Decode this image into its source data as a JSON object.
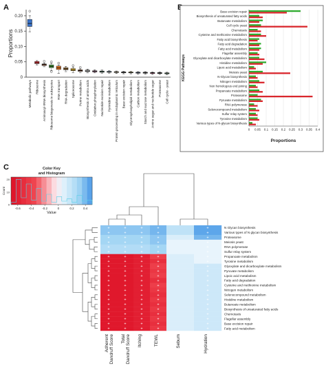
{
  "panels": {
    "a": "A",
    "b": "B",
    "c": "C"
  },
  "chart_data": [
    {
      "type": "box",
      "panel": "A",
      "ylabel": "Proportions",
      "ylim": [
        0,
        0.22
      ],
      "yticks": [
        0,
        0.05,
        0.1,
        0.15,
        0.2
      ],
      "ytick_labels": [
        "0",
        "0.05",
        "0.10",
        "0.15",
        "0.20"
      ],
      "grid": false,
      "boxes": [
        {
          "label": "Metabolic pathways",
          "color": "#3a73c9",
          "q1": 0.165,
          "median": 0.175,
          "q3": 0.188,
          "wmin": 0.148,
          "wmax": 0.2,
          "outliers": [
            0.215
          ]
        },
        {
          "label": "Ribosome",
          "color": "#d9262c",
          "q1": 0.044,
          "median": 0.047,
          "q3": 0.051,
          "wmin": 0.04,
          "wmax": 0.054,
          "outliers": []
        },
        {
          "label": "Aminoacyl-tRNA biosynthesis",
          "color": "#7c3f1f",
          "q1": 0.038,
          "median": 0.041,
          "q3": 0.043,
          "wmin": 0.034,
          "wmax": 0.046,
          "outliers": [
            0.052
          ]
        },
        {
          "label": "Ribosome biogenesis in eukaryotes",
          "color": "#3f8f35",
          "q1": 0.031,
          "median": 0.035,
          "q3": 0.04,
          "wmin": 0.022,
          "wmax": 0.045,
          "outliers": [
            0.05,
            0.018
          ]
        },
        {
          "label": "RNA transport",
          "color": "#e8711c",
          "q1": 0.025,
          "median": 0.03,
          "q3": 0.036,
          "wmin": 0.012,
          "wmax": 0.04,
          "outliers": [
            0.046
          ]
        },
        {
          "label": "RNA degradation",
          "color": "#9b6a2f",
          "q1": 0.024,
          "median": 0.027,
          "q3": 0.031,
          "wmin": 0.018,
          "wmax": 0.035,
          "outliers": []
        },
        {
          "label": "Spliceosome",
          "color": "#e9b626",
          "q1": 0.021,
          "median": 0.024,
          "q3": 0.028,
          "wmin": 0.015,
          "wmax": 0.032,
          "outliers": [
            0.038
          ]
        },
        {
          "label": "Purine metabolism",
          "color": "#8a4a2a",
          "q1": 0.019,
          "median": 0.021,
          "q3": 0.024,
          "wmin": 0.015,
          "wmax": 0.027,
          "outliers": [
            0.032
          ]
        },
        {
          "label": "Biosynthesis of amino acids",
          "color": "#b5b5b5",
          "q1": 0.018,
          "median": 0.02,
          "q3": 0.023,
          "wmin": 0.014,
          "wmax": 0.026,
          "outliers": []
        },
        {
          "label": "Oxidative phosphorylation",
          "color": "#d43a90",
          "q1": 0.017,
          "median": 0.019,
          "q3": 0.021,
          "wmin": 0.014,
          "wmax": 0.024,
          "outliers": []
        },
        {
          "label": "Nucleotide excision repair",
          "color": "#2e8f5a",
          "q1": 0.016,
          "median": 0.018,
          "q3": 0.02,
          "wmin": 0.013,
          "wmax": 0.023,
          "outliers": []
        },
        {
          "label": "Pyrimidine metabolism",
          "color": "#6fb3e0",
          "q1": 0.016,
          "median": 0.017,
          "q3": 0.019,
          "wmin": 0.013,
          "wmax": 0.021,
          "outliers": []
        },
        {
          "label": "Protein processing in endoplasmic reticulum",
          "color": "#e8c26a",
          "q1": 0.015,
          "median": 0.016,
          "q3": 0.018,
          "wmin": 0.012,
          "wmax": 0.02,
          "outliers": []
        },
        {
          "label": "Base excision repair",
          "color": "#555555",
          "q1": 0.014,
          "median": 0.016,
          "q3": 0.017,
          "wmin": 0.011,
          "wmax": 0.019,
          "outliers": []
        },
        {
          "label": "Glycerophospholipid metabolism",
          "color": "#f2dc6a",
          "q1": 0.014,
          "median": 0.015,
          "q3": 0.017,
          "wmin": 0.011,
          "wmax": 0.019,
          "outliers": []
        },
        {
          "label": "Carbon metabolism",
          "color": "#4a6fb0",
          "q1": 0.013,
          "median": 0.015,
          "q3": 0.016,
          "wmin": 0.01,
          "wmax": 0.018,
          "outliers": []
        },
        {
          "label": "Starch and sucrose metabolism",
          "color": "#2a2a2a",
          "q1": 0.013,
          "median": 0.014,
          "q3": 0.016,
          "wmin": 0.01,
          "wmax": 0.018,
          "outliers": []
        },
        {
          "label": "Amino sugar and nucleotide sugar",
          "color": "#c2185b",
          "q1": 0.012,
          "median": 0.014,
          "q3": 0.015,
          "wmin": 0.009,
          "wmax": 0.017,
          "outliers": []
        },
        {
          "label": "Proteasome",
          "color": "#555555",
          "q1": 0.012,
          "median": 0.013,
          "q3": 0.015,
          "wmin": 0.009,
          "wmax": 0.017,
          "outliers": []
        },
        {
          "label": "Cell cycle - yeast",
          "color": "#1f7a3a",
          "q1": 0.011,
          "median": 0.013,
          "q3": 0.014,
          "wmin": 0.008,
          "wmax": 0.016,
          "outliers": []
        }
      ]
    },
    {
      "type": "bar",
      "orientation": "horizontal",
      "panel": "B",
      "xlabel": "Proportions",
      "ylabel": "KEGG Pathways",
      "xlim": [
        0,
        0.4
      ],
      "xticks": [
        0,
        0.05,
        0.1,
        0.15,
        0.2,
        0.25,
        0.3,
        0.35,
        0.4
      ],
      "xtick_labels": [
        "0",
        "0.05",
        "0.1",
        "0.15",
        "0.2",
        "0.25",
        "0.3",
        "0.35",
        "0.4"
      ],
      "grid": true,
      "categories": [
        "Base excision repair",
        "Biosynthesis of unsaturated fatty acids",
        "Butanoate metabolism",
        "Cell cycle yeast",
        "Chemotaxis",
        "Cysteine and methionine metabolism",
        "Fatty acid biosynthesis",
        "Fatty acid degradation",
        "Fatty acid metabolism",
        "Flagellar assembly",
        "Glyoxylate and dicarboxylate metabolism",
        "Histidine metabolism",
        "Lipoic acid metabolism",
        "Meiosis yeast",
        "N-Glycan biosynthesis",
        "Nitrogen metabolism",
        "Non homologous end joining",
        "Propanoate metabolism",
        "Proteasome",
        "Pyruvate metabolism",
        "RNA polymerase",
        "Selenocompound metabolism",
        "Sulfur relay system",
        "Tyrosine metabolism",
        "Various types of N-glycan biosynthesis"
      ],
      "series": [
        {
          "color": "#2eab2e",
          "values": [
            0.3,
            0.06,
            0.08,
            0.07,
            0.05,
            0.07,
            0.06,
            0.07,
            0.07,
            0.05,
            0.06,
            0.1,
            0.03,
            0.08,
            0.04,
            0.06,
            0.04,
            0.06,
            0.05,
            0.07,
            0.03,
            0.04,
            0.04,
            0.05,
            0.02
          ]
        },
        {
          "color": "#d9262c",
          "values": [
            0.22,
            0.08,
            0.06,
            0.34,
            0.07,
            0.1,
            0.05,
            0.06,
            0.06,
            0.06,
            0.09,
            0.08,
            0.04,
            0.24,
            0.05,
            0.09,
            0.05,
            0.08,
            0.37,
            0.08,
            0.05,
            0.06,
            0.05,
            0.06,
            0.04
          ]
        }
      ]
    },
    {
      "type": "heatmap",
      "panel": "C",
      "legend_title": "Color Key\nand Histogram",
      "legend_axis_label": "Value",
      "legend_ylabel": "Count",
      "legend_ticks": [
        -0.6,
        -0.4,
        -0.2,
        0,
        0.2,
        0.4
      ],
      "legend_tick_labels": [
        "-0.6",
        "-0.4",
        "-0.2",
        "0",
        "0.2",
        "0.4"
      ],
      "legend_y_ticks": [
        "0",
        "10",
        "20"
      ],
      "columns": [
        "Adherent Dandruff Score",
        "Total Dandruff Score",
        "Itching",
        "TEWL",
        "Sebum",
        "Hydration"
      ],
      "rows": [
        "N Glycan biosynthesis",
        "Various types of N glycan biosynthesis",
        "Proteasome",
        "Meiosis yeast",
        "RNA polymerase",
        "Sulfur relay system",
        "Propanoate metabolism",
        "Tyrosine metabolism",
        "Glyoxylate and dicarboxylate metabolism",
        "Pyruvate metabolism",
        "Lipoic acid metabolism",
        "Fatty acid degradation",
        "Cysteine and methionine metabolism",
        "Nitrogen metabolism",
        "Selenocompound metabolism",
        "Histidine metabolism",
        "Butanoate metabolism",
        "Biosynthesis of unsaturated fatty acids",
        "Chemotaxis",
        "Flagellar assembly",
        "Base excision repair",
        "Fatty acid metabolism"
      ],
      "values": [
        [
          0.35,
          0.35,
          0.35,
          0.4,
          0.2,
          0.45
        ],
        [
          0.35,
          0.35,
          0.35,
          0.4,
          0.2,
          0.45
        ],
        [
          0.3,
          0.3,
          0.3,
          0.35,
          0.1,
          0.4
        ],
        [
          0.3,
          0.3,
          0.3,
          0.35,
          0.05,
          0.05
        ],
        [
          0.25,
          0.25,
          0.25,
          0.3,
          0.05,
          0.05
        ],
        [
          0.25,
          0.25,
          0.25,
          0.3,
          0.05,
          0.05
        ],
        [
          -0.65,
          -0.65,
          -0.6,
          -0.4,
          0.1,
          0.05
        ],
        [
          -0.65,
          -0.65,
          -0.6,
          -0.5,
          0.1,
          0.05
        ],
        [
          -0.65,
          -0.65,
          -0.6,
          -0.4,
          0.1,
          0.15
        ],
        [
          -0.65,
          -0.65,
          -0.6,
          -0.45,
          0.1,
          0.15
        ],
        [
          -0.65,
          -0.65,
          -0.6,
          -0.4,
          0.1,
          0.15
        ],
        [
          -0.65,
          -0.65,
          -0.6,
          -0.5,
          0.1,
          0.15
        ],
        [
          -0.65,
          -0.65,
          -0.6,
          -0.4,
          0.1,
          0.15
        ],
        [
          -0.65,
          -0.65,
          -0.6,
          -0.45,
          0.1,
          0.15
        ],
        [
          -0.65,
          -0.65,
          -0.6,
          -0.5,
          0.1,
          0.15
        ],
        [
          -0.65,
          -0.65,
          -0.6,
          -0.45,
          0.1,
          0.15
        ],
        [
          -0.65,
          -0.65,
          -0.6,
          -0.5,
          0.1,
          0.15
        ],
        [
          -0.65,
          -0.65,
          -0.6,
          -0.45,
          0.1,
          0.15
        ],
        [
          -0.65,
          -0.65,
          -0.6,
          -0.5,
          0.1,
          0.15
        ],
        [
          -0.65,
          -0.65,
          -0.6,
          -0.45,
          0.1,
          0.15
        ],
        [
          -0.65,
          -0.65,
          -0.6,
          -0.5,
          0.1,
          0.15
        ],
        [
          -0.65,
          -0.65,
          -0.6,
          -0.45,
          0.1,
          0.15
        ]
      ],
      "cell_marker": "+",
      "marked_columns": [
        0,
        1,
        2,
        3,
        5
      ]
    }
  ]
}
